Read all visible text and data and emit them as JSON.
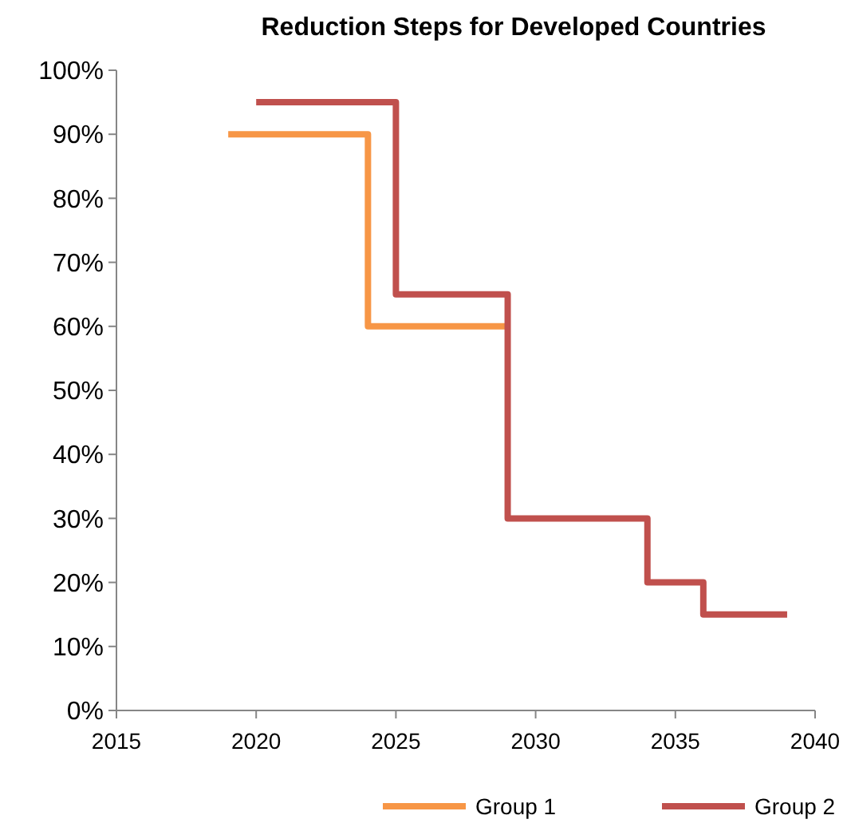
{
  "chart_data": {
    "type": "step",
    "title": "Reduction Steps for Developed Countries",
    "xlim": [
      2015,
      2040
    ],
    "xticks": [
      2015,
      2020,
      2025,
      2030,
      2035,
      2040
    ],
    "ylim": [
      0,
      100
    ],
    "yticks": [
      {
        "value": 0,
        "label": "0%"
      },
      {
        "value": 10,
        "label": "10%"
      },
      {
        "value": 20,
        "label": "20%"
      },
      {
        "value": 30,
        "label": "30%"
      },
      {
        "value": 40,
        "label": "40%"
      },
      {
        "value": 50,
        "label": "50%"
      },
      {
        "value": 60,
        "label": "60%"
      },
      {
        "value": 70,
        "label": "70%"
      },
      {
        "value": 80,
        "label": "80%"
      },
      {
        "value": 90,
        "label": "90%"
      },
      {
        "value": 100,
        "label": "100%"
      }
    ],
    "legend": "bottom",
    "grid": false,
    "series": [
      {
        "name": "Group 1",
        "color": "#f79646",
        "x": [
          2019,
          2024,
          2029
        ],
        "values": [
          90,
          60,
          60
        ]
      },
      {
        "name": "Group 2",
        "color": "#c0504d",
        "x": [
          2020,
          2025,
          2029,
          2034,
          2036,
          2039
        ],
        "values": [
          95,
          65,
          30,
          20,
          15,
          15
        ]
      }
    ]
  }
}
